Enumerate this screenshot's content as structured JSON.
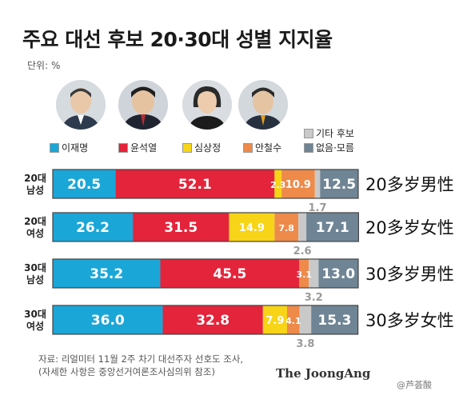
{
  "title": "주요 대선 후보 20·30대 성별 지지율",
  "unit": "단위: %",
  "candidates": [
    {
      "name": "이재명",
      "color": "#1ba6d8"
    },
    {
      "name": "윤석열",
      "color": "#e3243b"
    },
    {
      "name": "심상정",
      "color": "#f7d417"
    },
    {
      "name": "안철수",
      "color": "#ee8a4a"
    }
  ],
  "legend_extra": [
    {
      "name": "기타 후보",
      "color": "#c9c9c9"
    },
    {
      "name": "없음·모름",
      "color": "#6f8595"
    }
  ],
  "chart_data": {
    "type": "bar",
    "stacked": true,
    "orientation": "horizontal",
    "categories": [
      "20대\n남성",
      "20대\n여성",
      "30대\n남성",
      "30대\n여성"
    ],
    "category_annotations": [
      "20多岁男性",
      "20多岁女性",
      "30多岁男性",
      "30多岁女性"
    ],
    "series": [
      {
        "name": "이재명",
        "color": "#1ba6d8",
        "values": [
          20.5,
          26.2,
          35.2,
          36.0
        ]
      },
      {
        "name": "윤석열",
        "color": "#e3243b",
        "values": [
          52.1,
          31.5,
          45.5,
          32.8
        ]
      },
      {
        "name": "심상정",
        "color": "#f7d417",
        "values": [
          2.3,
          14.9,
          0.0,
          7.9
        ]
      },
      {
        "name": "안철수",
        "color": "#ee8a4a",
        "values": [
          10.9,
          7.8,
          3.1,
          4.1
        ]
      },
      {
        "name": "기타 후보",
        "color": "#c9c9c9",
        "values": [
          1.7,
          2.6,
          3.2,
          3.8
        ]
      },
      {
        "name": "없음·모름",
        "color": "#6f8595",
        "values": [
          12.5,
          17.1,
          13.0,
          15.3
        ]
      }
    ],
    "labels": [
      [
        "20.5",
        "52.1",
        "2.3",
        "10.9",
        "1.7",
        "12.5"
      ],
      [
        "26.2",
        "31.5",
        "14.9",
        "7.8",
        "2.6",
        "17.1"
      ],
      [
        "35.2",
        "45.5",
        "",
        "3.1",
        "3.2",
        "13.0"
      ],
      [
        "36.0",
        "32.8",
        "7.9",
        "4.1",
        "3.8",
        "15.3"
      ]
    ],
    "xlim": [
      0,
      100
    ]
  },
  "source_line1": "자료: 리얼미터 11월 2주 차기 대선주자 선호도 조사,",
  "source_line2": "(자세한 사항은 중앙선거여론조사심의위 참조)",
  "brand": "The JoongAng",
  "watermark": "@芦荟酸"
}
